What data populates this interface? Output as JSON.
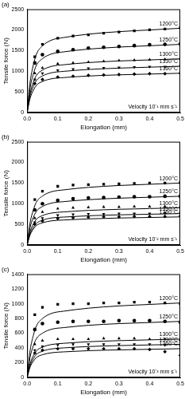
{
  "chart_data": [
    {
      "type": "scatter",
      "title": "(a)",
      "annotation": "Velocity 10⁻¹ mm s⁻¹",
      "x_label": "Elongation (mm)",
      "y_label": "Tensile force (N)",
      "xlim": [
        0,
        0.5
      ],
      "xticks": [
        {
          "value": 0,
          "label": "0.0"
        },
        0.1,
        0.2,
        0.3,
        0.4,
        0.5
      ],
      "ylim": [
        0,
        2500
      ],
      "yticks": [
        0,
        500,
        1000,
        1500,
        2000,
        2500
      ],
      "grid": false,
      "x": [
        0.025,
        0.05,
        0.1,
        0.15,
        0.2,
        0.25,
        0.3,
        0.35,
        0.4,
        0.45,
        0.5
      ],
      "fit_x": [
        0,
        0.005,
        0.01,
        0.02,
        0.03,
        0.05,
        0.08,
        0.12,
        0.2,
        0.3,
        0.4,
        0.5
      ],
      "series": [
        {
          "name": "1200°C",
          "color": "#000000",
          "marker": "square",
          "line_style": "solid",
          "values": [
            1350,
            1650,
            1800,
            1850,
            1880,
            1920,
            1950,
            1980,
            2000,
            2020,
            2050
          ],
          "fit": [
            0,
            408,
            755,
            1142,
            1408,
            1612,
            1754,
            1816,
            1897,
            1958,
            1999,
            2040
          ]
        },
        {
          "name": "1250°C",
          "color": "#000000",
          "marker": "circle",
          "line_style": "solid",
          "values": [
            1200,
            1400,
            1480,
            1520,
            1560,
            1580,
            1600,
            1620,
            1640,
            1650,
            1660
          ],
          "fit": [
            0,
            330,
            611,
            924,
            1139,
            1304,
            1419,
            1469,
            1535,
            1584,
            1617,
            1650
          ]
        },
        {
          "name": "1300°C",
          "color": "#000000",
          "marker": "triangle",
          "line_style": "solid",
          "values": [
            950,
            1080,
            1180,
            1200,
            1220,
            1240,
            1260,
            1270,
            1280,
            1290,
            1300
          ],
          "fit": [
            0,
            260,
            481,
            728,
            897,
            1027,
            1118,
            1157,
            1209,
            1248,
            1274,
            1300
          ]
        },
        {
          "name": "1330°C",
          "color": "#000000",
          "marker": "triangle_down",
          "line_style": "solid",
          "values": [
            800,
            950,
            1020,
            1050,
            1070,
            1080,
            1090,
            1100,
            1110,
            1110,
            1120
          ],
          "fit": [
            0,
            224,
            414,
            627,
            773,
            885,
            963,
            997,
            1042,
            1075,
            1098,
            1120
          ]
        },
        {
          "name": "1360°C",
          "color": "#000000",
          "marker": "diamond",
          "line_style": "solid",
          "values": [
            700,
            800,
            860,
            880,
            900,
            910,
            920,
            930,
            940,
            940,
            950
          ],
          "fit": [
            0,
            190,
            352,
            532,
            656,
            751,
            817,
            846,
            884,
            912,
            931,
            950
          ]
        }
      ]
    },
    {
      "type": "scatter",
      "title": "(b)",
      "annotation": "Velocity 10⁻² mm s⁻¹",
      "x_label": "Elongation (mm)",
      "y_label": "Tensile force (N)",
      "xlim": [
        0,
        0.5
      ],
      "xticks": [
        {
          "value": 0,
          "label": "0.0"
        },
        0.1,
        0.2,
        0.3,
        0.4,
        0.5
      ],
      "ylim": [
        0,
        2500
      ],
      "yticks": [
        0,
        500,
        1000,
        1500,
        2000,
        2500
      ],
      "grid": false,
      "x": [
        0.025,
        0.05,
        0.1,
        0.15,
        0.2,
        0.25,
        0.3,
        0.35,
        0.4,
        0.45,
        0.5
      ],
      "fit_x": [
        0,
        0.005,
        0.01,
        0.02,
        0.03,
        0.05,
        0.08,
        0.12,
        0.2,
        0.3,
        0.4,
        0.5
      ],
      "series": [
        {
          "name": "1200°C",
          "color": "#000000",
          "marker": "square",
          "line_style": "solid",
          "values": [
            1100,
            1300,
            1420,
            1450,
            1460,
            1470,
            1480,
            1490,
            1500,
            1500,
            1510
          ],
          "fit": [
            0,
            300,
            555,
            840,
            1035,
            1185,
            1290,
            1335,
            1395,
            1440,
            1470,
            1500
          ]
        },
        {
          "name": "1250°C",
          "color": "#000000",
          "marker": "circle",
          "line_style": "solid",
          "values": [
            850,
            1000,
            1080,
            1120,
            1140,
            1150,
            1160,
            1170,
            1170,
            1180,
            1180
          ],
          "fit": [
            0,
            236,
            437,
            661,
            814,
            932,
            1015,
            1050,
            1097,
            1133,
            1156,
            1180
          ]
        },
        {
          "name": "1300°C",
          "color": "#000000",
          "marker": "triangle",
          "line_style": "solid",
          "values": [
            650,
            800,
            880,
            900,
            910,
            920,
            920,
            930,
            930,
            930,
            940
          ],
          "fit": [
            0,
            180,
            333,
            504,
            621,
            711,
            774,
            801,
            837,
            864,
            882,
            900
          ]
        },
        {
          "name": "1330°C",
          "color": "#000000",
          "marker": "triangle_down",
          "line_style": "solid",
          "values": [
            550,
            650,
            720,
            740,
            750,
            750,
            760,
            760,
            760,
            770,
            770
          ],
          "fit": [
            0,
            152,
            281,
            426,
            524,
            600,
            654,
            676,
            707,
            730,
            745,
            760
          ]
        },
        {
          "name": "1360°C",
          "color": "#000000",
          "marker": "diamond",
          "line_style": "solid",
          "values": [
            500,
            580,
            640,
            660,
            670,
            680,
            680,
            690,
            690,
            690,
            700
          ],
          "fit": [
            0,
            136,
            252,
            381,
            469,
            537,
            585,
            605,
            632,
            653,
            666,
            680
          ]
        }
      ]
    },
    {
      "type": "scatter",
      "title": "(c)",
      "annotation": "Velocity 10⁻³ mm s⁻¹",
      "x_label": "Elongation (mm)",
      "y_label": "Tensile force (N)",
      "xlim": [
        0,
        0.5
      ],
      "xticks": [
        {
          "value": 0,
          "label": "0.0"
        },
        0.1,
        0.2,
        0.3,
        0.4,
        0.5
      ],
      "ylim": [
        0,
        1400
      ],
      "yticks": [
        0,
        200,
        400,
        600,
        800,
        1000,
        1200,
        1400
      ],
      "grid": false,
      "x": [
        0.025,
        0.05,
        0.1,
        0.15,
        0.2,
        0.25,
        0.3,
        0.35,
        0.4,
        0.45,
        0.5
      ],
      "fit_x": [
        0,
        0.005,
        0.01,
        0.02,
        0.03,
        0.05,
        0.08,
        0.12,
        0.2,
        0.3,
        0.4,
        0.5
      ],
      "series": [
        {
          "name": "1200°C",
          "color": "#000000",
          "marker": "square",
          "line_style": "solid",
          "values": [
            850,
            950,
            990,
            1000,
            1000,
            1010,
            1010,
            1020,
            1020,
            1010,
            1000
          ],
          "fit": [
            0,
            202,
            374,
            566,
            697,
            798,
            869,
            899,
            939,
            970,
            990,
            1010
          ]
        },
        {
          "name": "1250°C",
          "color": "#000000",
          "marker": "circle",
          "line_style": "solid",
          "values": [
            650,
            730,
            750,
            760,
            760,
            760,
            770,
            770,
            770,
            760,
            750
          ],
          "fit": [
            0,
            152,
            281,
            426,
            524,
            600,
            654,
            676,
            707,
            730,
            745,
            760
          ]
        },
        {
          "name": "1300°C",
          "color": "#000000",
          "marker": "triangle",
          "line_style": "solid",
          "values": [
            450,
            500,
            520,
            520,
            520,
            530,
            530,
            530,
            520,
            520,
            510
          ],
          "fit": [
            0,
            104,
            192,
            291,
            359,
            411,
            447,
            463,
            484,
            499,
            510,
            520
          ]
        },
        {
          "name": "1330°C",
          "color": "#000000",
          "marker": "triangle_down",
          "line_style": "solid",
          "values": [
            370,
            420,
            440,
            450,
            450,
            450,
            450,
            450,
            450,
            440,
            430
          ],
          "fit": [
            0,
            90,
            167,
            252,
            311,
            356,
            387,
            401,
            419,
            432,
            441,
            450
          ]
        },
        {
          "name": "1360°C",
          "color": "#000000",
          "marker": "diamond",
          "line_style": "solid",
          "values": [
            330,
            370,
            390,
            390,
            390,
            390,
            390,
            390,
            380,
            350,
            300
          ],
          "fit": [
            0,
            78,
            144,
            218,
            269,
            308,
            335,
            347,
            363,
            374,
            382,
            390
          ]
        }
      ]
    }
  ]
}
